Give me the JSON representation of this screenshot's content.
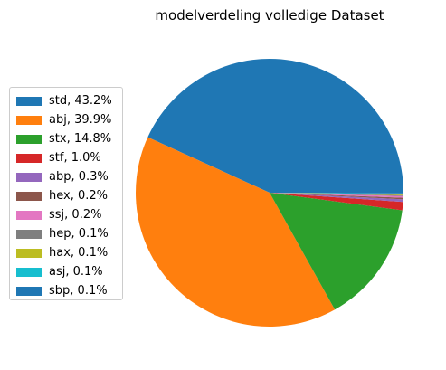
{
  "chart_data": {
    "type": "pie",
    "title": "modelverdeling volledige Dataset",
    "legend_placement": "left",
    "slices": [
      {
        "label": "std, 43.2%",
        "name": "std",
        "value": 43.2,
        "color": "#1f77b4"
      },
      {
        "label": "abj, 39.9%",
        "name": "abj",
        "value": 39.9,
        "color": "#ff7f0e"
      },
      {
        "label": "stx, 14.8%",
        "name": "stx",
        "value": 14.8,
        "color": "#2ca02c"
      },
      {
        "label": "stf, 1.0%",
        "name": "stf",
        "value": 1.0,
        "color": "#d62728"
      },
      {
        "label": "abp, 0.3%",
        "name": "abp",
        "value": 0.3,
        "color": "#9467bd"
      },
      {
        "label": "hex, 0.2%",
        "name": "hex",
        "value": 0.2,
        "color": "#8c564b"
      },
      {
        "label": "ssj, 0.2%",
        "name": "ssj",
        "value": 0.2,
        "color": "#e377c2"
      },
      {
        "label": "hep, 0.1%",
        "name": "hep",
        "value": 0.1,
        "color": "#7f7f7f"
      },
      {
        "label": "hax, 0.1%",
        "name": "hax",
        "value": 0.1,
        "color": "#bcbd22"
      },
      {
        "label": "asj, 0.1%",
        "name": "asj",
        "value": 0.1,
        "color": "#17becf"
      },
      {
        "label": "sbp, 0.1%",
        "name": "sbp",
        "value": 0.1,
        "color": "#1f77b4"
      }
    ]
  }
}
